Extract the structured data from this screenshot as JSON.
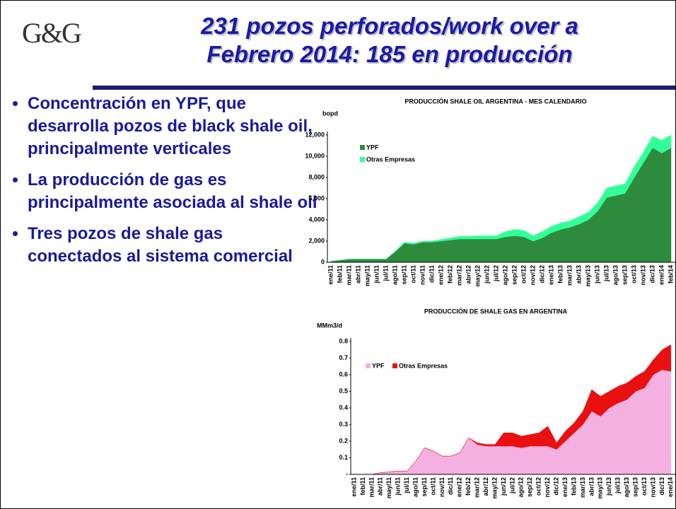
{
  "slide": {
    "logo": "G&G",
    "title_lines": [
      "231 pozos perforados/work over a",
      "Febrero 2014: 185 en producción"
    ],
    "bullets": [
      "Concentración en YPF, que desarrolla pozos de black shale oil, principalmente verticales",
      "La producción de gas es principalmente asociada al shale oil",
      "Tres pozos de shale gas conectados al sistema comercial"
    ]
  },
  "chart_data": [
    {
      "type": "stacked-area",
      "title": "PRODUCCIÓN SHALE OIL ARGENTINA - MES CALENDARIO",
      "y_label": "bopd",
      "categories": [
        "ene/11",
        "feb/11",
        "mar/11",
        "abr/11",
        "may/11",
        "jun/11",
        "jul/11",
        "ago/11",
        "sep/11",
        "oct/11",
        "nov/11",
        "dic/11",
        "ene/12",
        "feb/12",
        "mar/12",
        "abr/12",
        "may/12",
        "jun/12",
        "jul/12",
        "ago/12",
        "sep/12",
        "oct/12",
        "nov/12",
        "dic/12",
        "ene/13",
        "feb/13",
        "mar/13",
        "abr/13",
        "may/13",
        "jun/13",
        "jul/13",
        "ago/13",
        "sep/13",
        "oct/13",
        "nov/13",
        "dic/13",
        "ene/14",
        "feb/14"
      ],
      "series": [
        {
          "name": "YPF",
          "color": "#2e8b3e",
          "values": [
            100,
            200,
            300,
            300,
            300,
            300,
            300,
            1000,
            1800,
            1700,
            1900,
            1900,
            2000,
            2100,
            2200,
            2200,
            2200,
            2200,
            2200,
            2400,
            2500,
            2400,
            2000,
            2300,
            2800,
            3100,
            3300,
            3600,
            4000,
            4800,
            6100,
            6300,
            6500,
            8000,
            9400,
            10800,
            10300,
            10800
          ]
        },
        {
          "name": "Otras Empresas",
          "color": "#33ff99",
          "values": [
            0,
            0,
            0,
            0,
            0,
            0,
            0,
            50,
            100,
            100,
            100,
            100,
            150,
            200,
            250,
            250,
            300,
            300,
            300,
            500,
            600,
            600,
            500,
            600,
            600,
            600,
            600,
            700,
            700,
            800,
            900,
            900,
            900,
            1000,
            1000,
            1100,
            1200,
            1200
          ]
        }
      ],
      "ylim": [
        0,
        12000
      ],
      "yticks": [
        0,
        {
          "value": 2000,
          "label": "2,000"
        },
        {
          "value": 4000,
          "label": "4,000"
        },
        {
          "value": 6000,
          "label": "6,000"
        },
        {
          "value": 8000,
          "label": "8,000"
        },
        {
          "value": 10000,
          "label": "10,000"
        },
        {
          "value": 12000,
          "label": "12,000"
        }
      ]
    },
    {
      "type": "stacked-area",
      "title": "PRODUCCIÓN DE SHALE GAS EN ARGENTINA",
      "y_label": "MMm3/d",
      "categories": [
        "ene/11",
        "feb/11",
        "mar/11",
        "abr/11",
        "may/11",
        "jun/11",
        "jul/11",
        "ago/11",
        "sep/11",
        "oct/11",
        "nov/11",
        "dic/11",
        "ene/12",
        "feb/12",
        "mar/12",
        "abr/12",
        "may/12",
        "jun/12",
        "jul/12",
        "ago/12",
        "sep/12",
        "oct/12",
        "nov/12",
        "dic/12",
        "ene/13",
        "feb/13",
        "mar/13",
        "abr/13",
        "may/13",
        "jun/13",
        "jul/13",
        "ago/13",
        "sep/13",
        "oct/13",
        "nov/13",
        "dic/13",
        "ene/14"
      ],
      "series": [
        {
          "name": "YPF",
          "color": "#f4b0e0",
          "values": [
            0,
            0,
            0,
            0.01,
            0.015,
            0.02,
            0.02,
            0.08,
            0.16,
            0.14,
            0.11,
            0.11,
            0.13,
            0.22,
            0.18,
            0.17,
            0.17,
            0.17,
            0.17,
            0.16,
            0.17,
            0.17,
            0.17,
            0.15,
            0.2,
            0.25,
            0.3,
            0.38,
            0.35,
            0.4,
            0.43,
            0.45,
            0.5,
            0.52,
            0.6,
            0.63,
            0.62
          ]
        },
        {
          "name": "Otras Empresas",
          "color": "#e81010",
          "values": [
            0,
            0,
            0,
            0,
            0,
            0,
            0,
            0,
            0,
            0,
            0,
            0,
            0,
            0,
            0.01,
            0.01,
            0.01,
            0.08,
            0.08,
            0.07,
            0.07,
            0.08,
            0.12,
            0.04,
            0.06,
            0.06,
            0.08,
            0.13,
            0.12,
            0.1,
            0.1,
            0.1,
            0.09,
            0.1,
            0.09,
            0.12,
            0.16
          ]
        }
      ],
      "ylim": [
        0,
        0.8
      ],
      "yticks": [
        {
          "value": 0,
          "label": "-"
        },
        0.1,
        0.2,
        0.3,
        0.4,
        0.5,
        0.6,
        0.7,
        0.8
      ]
    }
  ]
}
